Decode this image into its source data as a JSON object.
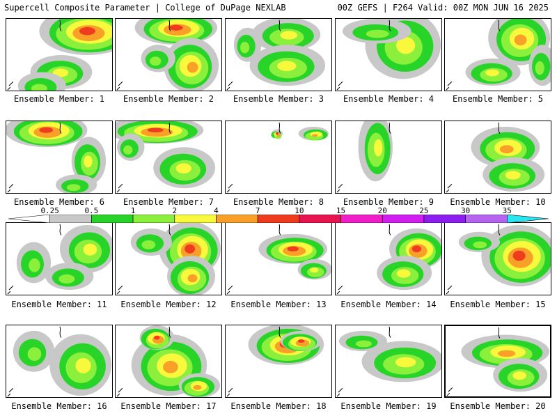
{
  "header": {
    "left": "Supercell Composite Parameter | College of DuPage NEXLAB",
    "right": "00Z GEFS | F264 Valid: 00Z MON JUN 16 2025"
  },
  "legend": {
    "ticks": [
      "0.25",
      "0.5",
      "1",
      "2",
      "4",
      "7",
      "10",
      "15",
      "20",
      "25",
      "30",
      "35"
    ],
    "colors": [
      "#c8c8c8",
      "#28d428",
      "#8af03c",
      "#f8f83c",
      "#f8a028",
      "#f03c1e",
      "#e81450",
      "#f01ec8",
      "#d21ef0",
      "#8c1ef0",
      "#b464f0",
      "#28e6f0"
    ]
  },
  "panels": [
    {
      "label": "Ensemble Member: 1"
    },
    {
      "label": "Ensemble Member: 2"
    },
    {
      "label": "Ensemble Member: 3"
    },
    {
      "label": "Ensemble Member: 4"
    },
    {
      "label": "Ensemble Member: 5"
    },
    {
      "label": "Ensemble Member: 6"
    },
    {
      "label": "Ensemble Member: 7"
    },
    {
      "label": "Ensemble Member: 8"
    },
    {
      "label": "Ensemble Member: 9"
    },
    {
      "label": "Ensemble Member: 10"
    },
    {
      "label": "Ensemble Member: 11"
    },
    {
      "label": "Ensemble Member: 12"
    },
    {
      "label": "Ensemble Member: 13"
    },
    {
      "label": "Ensemble Member: 14"
    },
    {
      "label": "Ensemble Member: 15"
    },
    {
      "label": "Ensemble Member: 16"
    },
    {
      "label": "Ensemble Member: 17"
    },
    {
      "label": "Ensemble Member: 18"
    },
    {
      "label": "Ensemble Member: 19"
    },
    {
      "label": "Ensemble Member: 20"
    }
  ]
}
